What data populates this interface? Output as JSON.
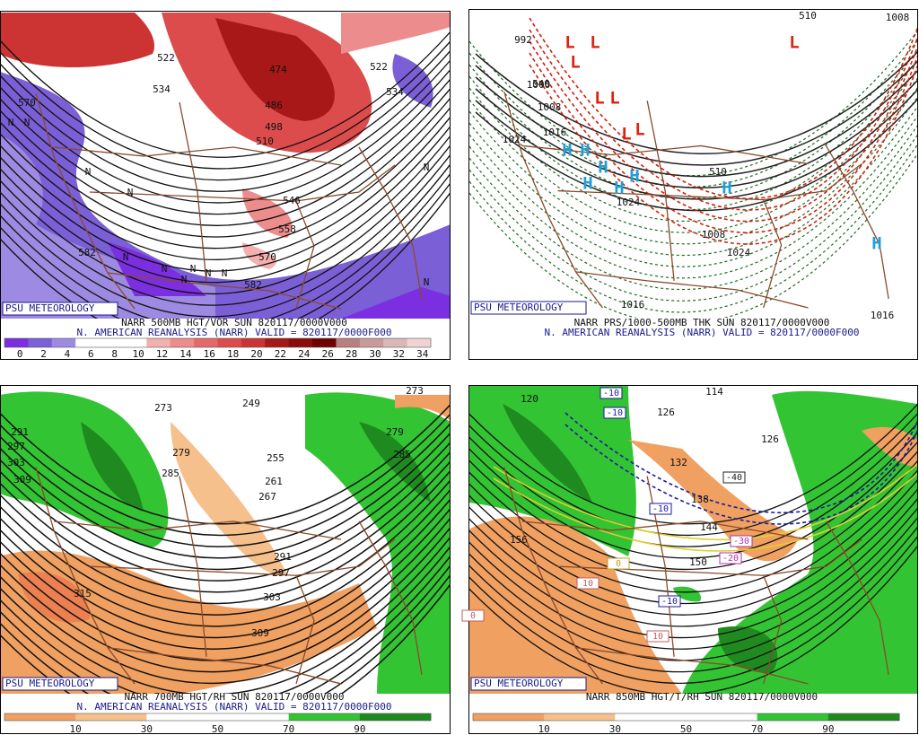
{
  "panels": [
    {
      "brand": "PSU METEOROLOGY",
      "caption": [
        "NARR 500MB HGT/VOR SUN 820117/0000V000",
        "N. AMERICAN REANALYSIS (NARR) VALID = 820117/0000F000"
      ],
      "colorbar": {
        "labels": [
          0,
          2,
          4,
          6,
          8,
          10,
          12,
          14,
          16,
          18,
          20,
          22,
          24,
          26,
          28,
          30,
          32,
          34
        ],
        "colors": [
          "#7b2fe0",
          "#7a5fd6",
          "#9d8ae2",
          "#ffffff",
          "#ffffff",
          "#ffffff",
          "#f4b0b0",
          "#ec8c8c",
          "#e46a6a",
          "#dc4c4c",
          "#cc3434",
          "#a81818",
          "#8a0c0c",
          "#6e0000",
          "#b88080",
          "#c89a9a",
          "#dab8b8",
          "#f0d4d4"
        ]
      },
      "contour_labels": [
        522,
        534,
        570,
        474,
        486,
        498,
        510,
        546,
        558,
        570,
        582,
        582,
        534,
        522
      ],
      "symbols": [
        "N",
        "N",
        "N",
        "N",
        "N",
        "N",
        "N",
        "N",
        "N",
        "N",
        "N",
        "N"
      ]
    },
    {
      "brand": "PSU METEOROLOGY",
      "caption": [
        "NARR PRS/1000-500MB THK SUN 820117/0000V000",
        "N. AMERICAN REANALYSIS (NARR) VALID = 820117/0000F000"
      ],
      "contour_labels": [
        992,
        1008,
        1000,
        1008,
        1016,
        1024,
        1024,
        1016,
        1016,
        1008,
        1024,
        540,
        510,
        510
      ],
      "symbols": [
        "L",
        "L",
        "L",
        "L",
        "L",
        "L",
        "L",
        "L",
        "H",
        "H",
        "H",
        "H",
        "H",
        "H",
        "H",
        "H"
      ],
      "symbol_colors": {
        "L": "#e02010",
        "H": "#20a0d8"
      }
    },
    {
      "brand": "PSU METEOROLOGY",
      "caption": [
        "NARR 700MB HGT/RH SUN 820117/0000V000",
        "N. AMERICAN REANALYSIS (NARR) VALID = 820117/0000F000"
      ],
      "colorbar": {
        "labels": [
          10,
          30,
          50,
          70,
          90
        ],
        "colors": [
          "#f0a060",
          "#f6c08c",
          "#ffffff",
          "#ffffff",
          "#33c433",
          "#1f8a1f"
        ]
      },
      "contour_labels": [
        273,
        249,
        291,
        297,
        303,
        309,
        279,
        285,
        255,
        261,
        267,
        291,
        297,
        303,
        309,
        315,
        273,
        279,
        285
      ]
    },
    {
      "brand": "PSU METEOROLOGY",
      "caption": [
        "NARR 850MB HGT/T/RH SUN 820117/0000V000"
      ],
      "colorbar": {
        "labels": [
          10,
          30,
          50,
          70,
          90
        ],
        "colors": [
          "#f0a060",
          "#f6c08c",
          "#ffffff",
          "#ffffff",
          "#33c433",
          "#1f8a1f"
        ]
      },
      "contour_labels": [
        120,
        114,
        126,
        126,
        132,
        138,
        144,
        150,
        156
      ],
      "temp_labels": [
        -10,
        -10,
        -10,
        -10,
        -40,
        -30,
        -20,
        10,
        0,
        10,
        0
      ]
    }
  ]
}
